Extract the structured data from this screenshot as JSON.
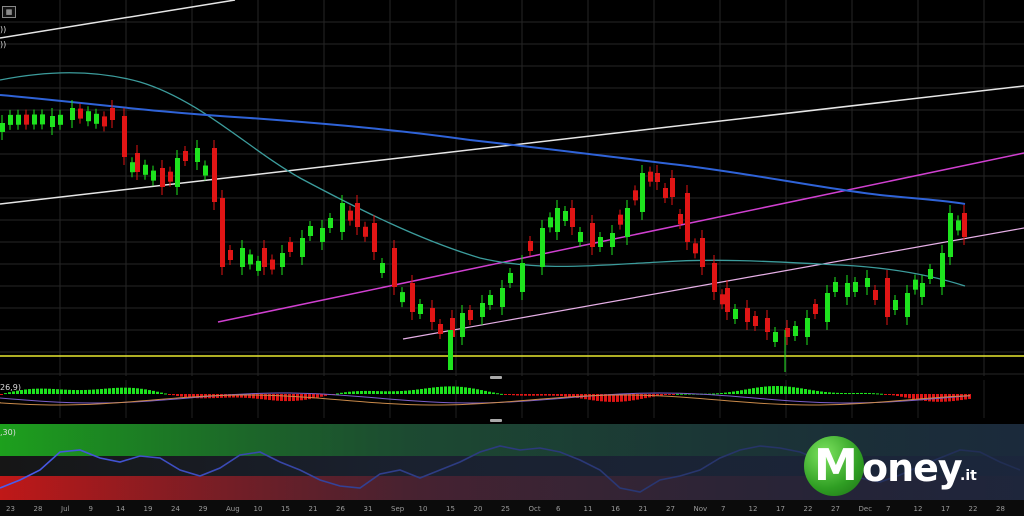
{
  "toolbar": {
    "chart_tool_icon": "calendar-icon",
    "price_labels": [
      "))",
      "))"
    ]
  },
  "indicators": {
    "macd_label": "26,9)",
    "oscillator_label": ",30)"
  },
  "x_axis": {
    "ticks": [
      "23",
      "28",
      "Jul",
      "9",
      "14",
      "19",
      "24",
      "29",
      "Aug",
      "10",
      "15",
      "21",
      "26",
      "31",
      "Sep",
      "10",
      "15",
      "20",
      "25",
      "Oct",
      "6",
      "11",
      "16",
      "21",
      "27",
      "Nov",
      "7",
      "12",
      "17",
      "22",
      "27",
      "Dec",
      "7",
      "12",
      "17",
      "22",
      "28"
    ]
  },
  "brand": {
    "m": "M",
    "rest": "oney",
    "suffix": ".it"
  },
  "colors": {
    "up_candle": "#1ee31e",
    "down_candle": "#e01515",
    "brand_green": "#2f9e23",
    "support_line": "#e8e830",
    "channel_magenta": "#d040d0",
    "channel_white": "#e6e6e6",
    "ma_blue": "#2f63d8",
    "ma_teal": "#3c9c9c"
  }
}
